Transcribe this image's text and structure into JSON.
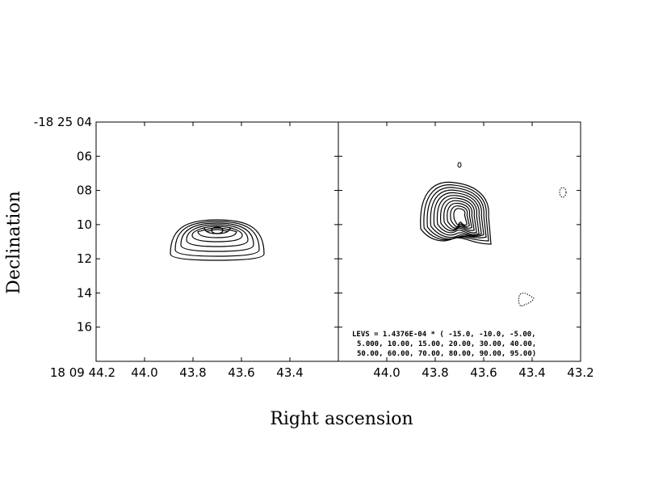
{
  "chart_data": [
    {
      "type": "contour",
      "panel": "left",
      "xlabel": "Right ascension",
      "ylabel": "Declination",
      "x_ticks": [
        "18 09 44.2",
        "44.0",
        "43.8",
        "43.6",
        "43.4"
      ],
      "y_ticks": [
        "-18 25 04",
        "06",
        "08",
        "10",
        "12",
        "14",
        "16"
      ],
      "xlim": [
        44.2,
        43.2
      ],
      "ylim_arcsec": [
        4,
        18
      ],
      "source_peak": {
        "ra": 43.7,
        "dec_arcsec": 10.3
      },
      "n_contours": 8
    },
    {
      "type": "contour",
      "panel": "right",
      "x_ticks": [
        "44.0",
        "43.8",
        "43.6",
        "43.4",
        "43.2"
      ],
      "xlim": [
        44.2,
        43.2
      ],
      "ylim_arcsec": [
        4,
        18
      ],
      "source_peak": {
        "ra": 43.7,
        "dec_arcsec": 9.4
      },
      "n_contours": 11,
      "negative_contours": "dotted",
      "levs_text": [
        "LEVS =  1.4376E-04 * (  -15.0, -10.0, -5.00,",
        "5.000, 10.00, 15.00, 20.00, 30.00, 40.00,",
        "50.00, 60.00, 70.00, 80.00, 90.00, 95.00)"
      ]
    }
  ]
}
